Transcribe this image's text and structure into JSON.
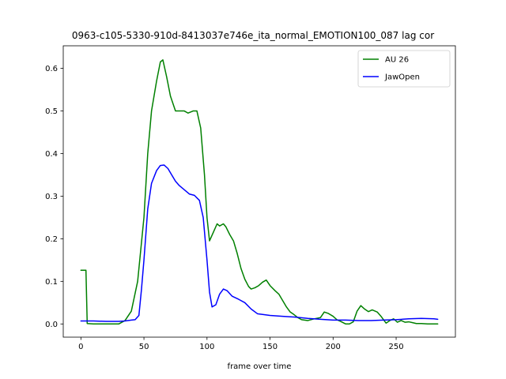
{
  "chart_data": {
    "type": "line",
    "title": "0963-c105-5330-910d-8413037e746e_ita_normal_EMOTION100_087  lag cor",
    "xlabel": "frame over time",
    "ylabel": "",
    "xlim": [
      -14,
      297
    ],
    "ylim": [
      -0.031,
      0.653
    ],
    "xticks": [
      0,
      50,
      100,
      150,
      200,
      250
    ],
    "yticks": [
      0.0,
      0.1,
      0.2,
      0.3,
      0.4,
      0.5,
      0.6
    ],
    "grid": false,
    "legend_position": "upper-right",
    "series": [
      {
        "name": "AU 26",
        "color": "#008000",
        "x": [
          0,
          4,
          5,
          10,
          20,
          30,
          35,
          40,
          45,
          50,
          53,
          56,
          60,
          63,
          65,
          68,
          71,
          75,
          78,
          82,
          85,
          89,
          92,
          95,
          98,
          100,
          102,
          105,
          108,
          110,
          113,
          115,
          118,
          121,
          124,
          127,
          130,
          133,
          135,
          138,
          141,
          144,
          147,
          150,
          154,
          157,
          160,
          163,
          166,
          169,
          172,
          175,
          180,
          185,
          190,
          193,
          196,
          200,
          203,
          206,
          210,
          213,
          216,
          219,
          222,
          225,
          228,
          231,
          235,
          238,
          242,
          245,
          248,
          251,
          254,
          257,
          260,
          263,
          266,
          270,
          275,
          280,
          283
        ],
        "y": [
          0.126,
          0.126,
          0.001,
          0.0,
          0.0,
          0.0,
          0.008,
          0.03,
          0.1,
          0.25,
          0.4,
          0.5,
          0.57,
          0.615,
          0.62,
          0.58,
          0.535,
          0.5,
          0.5,
          0.5,
          0.495,
          0.5,
          0.5,
          0.46,
          0.35,
          0.25,
          0.195,
          0.215,
          0.235,
          0.23,
          0.235,
          0.228,
          0.21,
          0.195,
          0.165,
          0.13,
          0.105,
          0.088,
          0.082,
          0.085,
          0.09,
          0.098,
          0.103,
          0.09,
          0.078,
          0.07,
          0.055,
          0.04,
          0.028,
          0.022,
          0.015,
          0.01,
          0.008,
          0.012,
          0.015,
          0.028,
          0.025,
          0.018,
          0.01,
          0.006,
          0.0,
          0.0,
          0.005,
          0.03,
          0.043,
          0.035,
          0.029,
          0.033,
          0.028,
          0.018,
          0.002,
          0.008,
          0.012,
          0.004,
          0.008,
          0.004,
          0.005,
          0.003,
          0.001,
          0.001,
          0.0,
          0.0,
          0.0
        ]
      },
      {
        "name": "JawOpen",
        "color": "#0000ff",
        "x": [
          0,
          10,
          20,
          30,
          35,
          40,
          43,
          46,
          48,
          50,
          53,
          56,
          60,
          63,
          66,
          69,
          72,
          75,
          78,
          82,
          86,
          90,
          94,
          97,
          100,
          102,
          104,
          107,
          110,
          113,
          116,
          120,
          125,
          130,
          135,
          140,
          150,
          160,
          170,
          180,
          190,
          200,
          210,
          220,
          230,
          240,
          250,
          260,
          270,
          280,
          283
        ],
        "y": [
          0.007,
          0.007,
          0.006,
          0.006,
          0.007,
          0.009,
          0.01,
          0.02,
          0.08,
          0.15,
          0.27,
          0.33,
          0.36,
          0.372,
          0.373,
          0.365,
          0.35,
          0.335,
          0.325,
          0.315,
          0.305,
          0.302,
          0.29,
          0.25,
          0.15,
          0.075,
          0.04,
          0.045,
          0.07,
          0.082,
          0.078,
          0.065,
          0.058,
          0.05,
          0.035,
          0.024,
          0.02,
          0.018,
          0.016,
          0.013,
          0.011,
          0.009,
          0.009,
          0.008,
          0.008,
          0.009,
          0.01,
          0.012,
          0.013,
          0.012,
          0.011
        ]
      }
    ]
  }
}
